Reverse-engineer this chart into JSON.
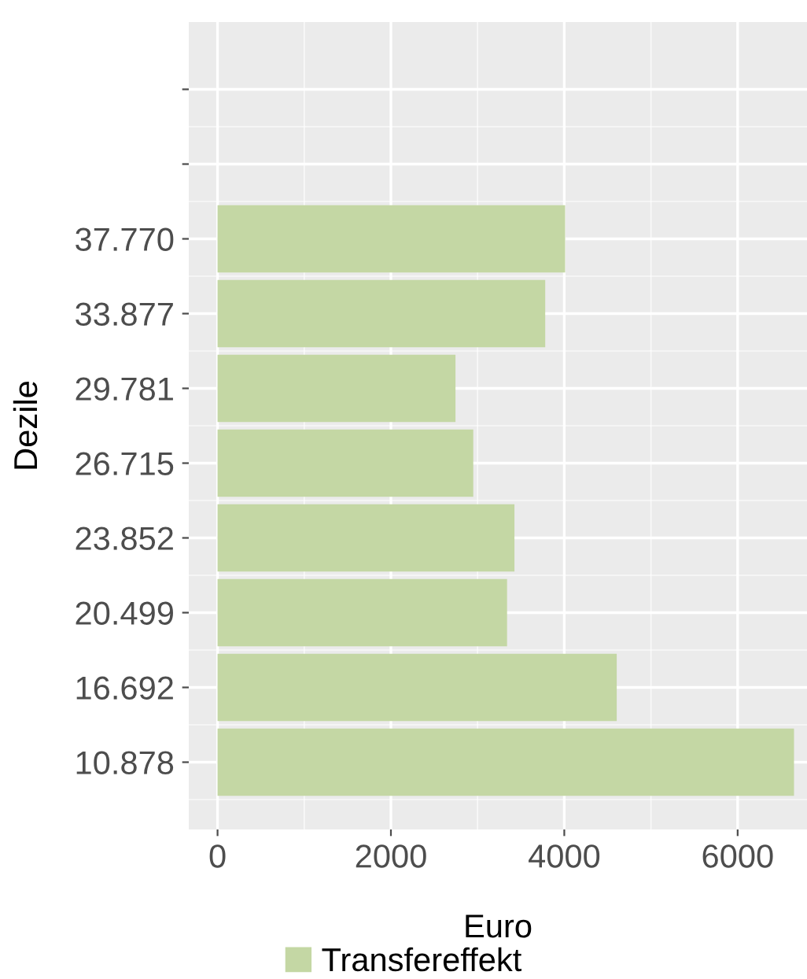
{
  "chart_data": {
    "type": "bar",
    "orientation": "horizontal",
    "xlabel": "Euro",
    "ylabel": "Dezile",
    "categories": [
      null,
      null,
      "37.770",
      "33.877",
      "29.781",
      "26.715",
      "23.852",
      "20.499",
      "16.692",
      "10.878"
    ],
    "series": [
      {
        "name": "Transfereffekt",
        "color": "#c4d7a4",
        "values": [
          null,
          null,
          4010,
          3780,
          2745,
          2950,
          3425,
          3340,
          4605,
          6650
        ]
      }
    ],
    "xlim": [
      -332,
      6800
    ],
    "xticks": [
      0,
      2000,
      4000,
      6000
    ],
    "grid": true,
    "legend": "bottom"
  }
}
